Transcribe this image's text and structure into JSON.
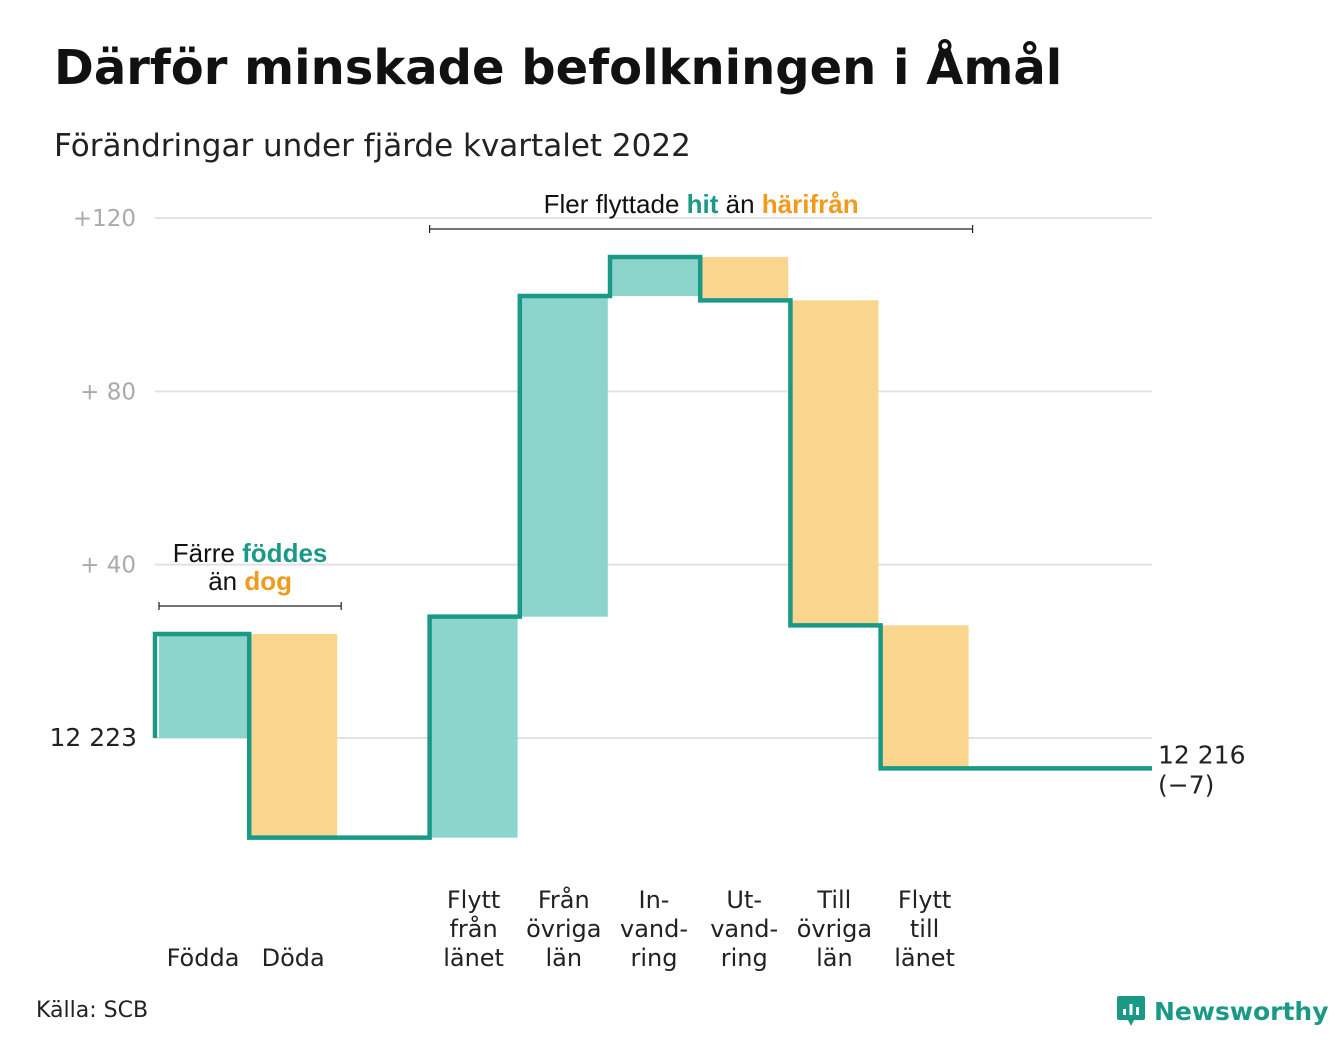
{
  "title": "Därför minskade befolkningen i Åmål",
  "subtitle": "Förändringar under fjärde kvartalet 2022",
  "source": "Källa: SCB",
  "brand": "Newsworthy",
  "colors": {
    "positive": "#8dd5cc",
    "negative": "#fad58d",
    "line": "#1a9a86",
    "teal_text": "#1a9a86",
    "orange_text": "#f29a1e",
    "grid": "#e2e2e2",
    "tick": "#aaaaaa"
  },
  "chart_data": {
    "type": "waterfall",
    "start_label": "12 223",
    "end_label": "12 216",
    "end_change": "(−7)",
    "start_value": 0,
    "yticks": [
      {
        "value": 120,
        "label": "+120"
      },
      {
        "value": 80,
        "label": "+ 80"
      },
      {
        "value": 40,
        "label": "+ 40"
      }
    ],
    "ylim": [
      -30,
      125
    ],
    "categories": [
      {
        "label": [
          "Födda"
        ],
        "change": 24,
        "kind": "in"
      },
      {
        "label": [
          "Döda"
        ],
        "change": -47,
        "kind": "out"
      },
      {
        "label": [
          ""
        ],
        "change": 0,
        "kind": "none"
      },
      {
        "label": [
          "Flytt",
          "från",
          "länet"
        ],
        "change": 51,
        "kind": "in"
      },
      {
        "label": [
          "Från",
          "övriga",
          "län"
        ],
        "change": 74,
        "kind": "in"
      },
      {
        "label": [
          "In-",
          "vand-",
          "ring"
        ],
        "change": 9,
        "kind": "in"
      },
      {
        "label": [
          "Ut-",
          "vand-",
          "ring"
        ],
        "change": -10,
        "kind": "out"
      },
      {
        "label": [
          "Till",
          "övriga",
          "län"
        ],
        "change": -75,
        "kind": "out"
      },
      {
        "label": [
          "Flytt",
          "till",
          "länet"
        ],
        "change": -33,
        "kind": "out"
      },
      {
        "label": [
          ""
        ],
        "change": 0,
        "kind": "none"
      }
    ],
    "annotations": [
      {
        "from": 0,
        "to": 1,
        "lines": [
          [
            {
              "text": "Färre ",
              "style": "plain"
            },
            {
              "text": "föddes",
              "style": "teal"
            }
          ],
          [
            {
              "text": "än ",
              "style": "plain"
            },
            {
              "text": "dog",
              "style": "orange"
            }
          ]
        ]
      },
      {
        "from": 3,
        "to": 8,
        "lines": [
          [
            {
              "text": "Fler flyttade ",
              "style": "plain"
            },
            {
              "text": "hit",
              "style": "teal"
            },
            {
              "text": " än ",
              "style": "plain"
            },
            {
              "text": "härifrån",
              "style": "orange"
            }
          ]
        ]
      }
    ]
  }
}
